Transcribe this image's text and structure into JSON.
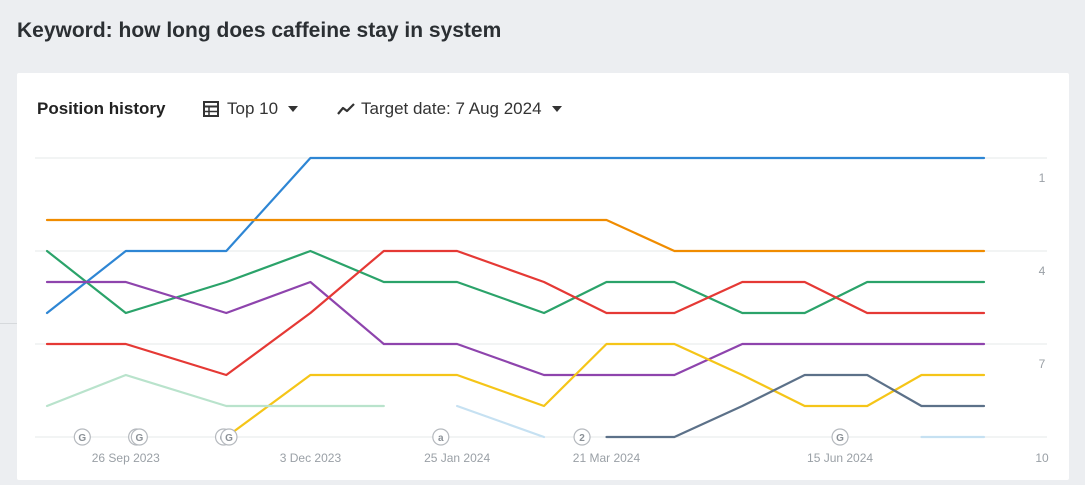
{
  "page": {
    "title": "Keyword: how long does caffeine stay in system"
  },
  "toolbar": {
    "section_title": "Position history",
    "top_filter_label": "Top 10",
    "target_date_label": "Target date: 7 Aug 2024",
    "table_icon": "table-icon",
    "chart_icon": "line-chart-icon"
  },
  "chart_data": {
    "type": "line",
    "y_axis": {
      "reversed": true,
      "ylim": [
        1,
        10
      ],
      "ticks": [
        "1",
        "4",
        "7",
        "10"
      ]
    },
    "x_tick_labels": [
      "26 Sep 2023",
      "3 Dec 2023",
      "25 Jan 2024",
      "21 Mar 2024",
      "15 Jun 2024"
    ],
    "x": [
      "2023-08-28",
      "2023-09-26",
      "2023-11-02",
      "2023-12-03",
      "2023-12-30",
      "2024-01-26",
      "2024-02-27",
      "2024-03-21",
      "2024-04-15",
      "2024-05-10",
      "2024-06-02",
      "2024-06-25",
      "2024-07-15",
      "2024-08-07"
    ],
    "grid": true,
    "legend": "none",
    "series": [
      {
        "color": "#2e86d4",
        "values": [
          6,
          4,
          4,
          1,
          1,
          1,
          1,
          1,
          1,
          1,
          1,
          1,
          1,
          1
        ]
      },
      {
        "color": "#f08c00",
        "values": [
          3,
          3,
          3,
          3,
          3,
          3,
          3,
          3,
          4,
          4,
          4,
          4,
          4,
          4
        ]
      },
      {
        "color": "#2ba36a",
        "values": [
          4,
          6,
          5,
          4,
          5,
          5,
          6,
          5,
          5,
          6,
          6,
          5,
          5,
          5
        ]
      },
      {
        "color": "#8e44ad",
        "values": [
          5,
          5,
          6,
          5,
          7,
          7,
          8,
          8,
          8,
          7,
          7,
          7,
          7,
          7
        ]
      },
      {
        "color": "#e53935",
        "values": [
          7,
          7,
          8,
          6,
          4,
          4,
          5,
          6,
          6,
          5,
          5,
          6,
          6,
          6
        ]
      },
      {
        "color": "#f5c518",
        "values": [
          null,
          null,
          10,
          8,
          8,
          8,
          9,
          7,
          7,
          8,
          9,
          9,
          8,
          8
        ]
      },
      {
        "color": "#5c7189",
        "values": [
          null,
          null,
          null,
          null,
          null,
          null,
          null,
          10,
          10,
          9,
          8,
          8,
          9,
          9
        ]
      },
      {
        "color": "#b9e3cc",
        "values": [
          9,
          8,
          9,
          9,
          9,
          null,
          null,
          null,
          null,
          null,
          null,
          null,
          null,
          null
        ]
      },
      {
        "color": "#c6e1f2",
        "values": [
          null,
          null,
          null,
          null,
          null,
          9,
          10,
          null,
          null,
          null,
          null,
          null,
          10,
          10
        ]
      }
    ],
    "events": [
      {
        "x": "2023-09-10",
        "label": "G"
      },
      {
        "x": "2023-09-30",
        "label": "G"
      },
      {
        "x": "2023-10-01",
        "label": "G"
      },
      {
        "x": "2023-11-01",
        "label": "G"
      },
      {
        "x": "2023-11-03",
        "label": "G"
      },
      {
        "x": "2024-01-20",
        "label": "a"
      },
      {
        "x": "2024-03-12",
        "label": "2"
      },
      {
        "x": "2024-06-15",
        "label": "G"
      }
    ]
  }
}
